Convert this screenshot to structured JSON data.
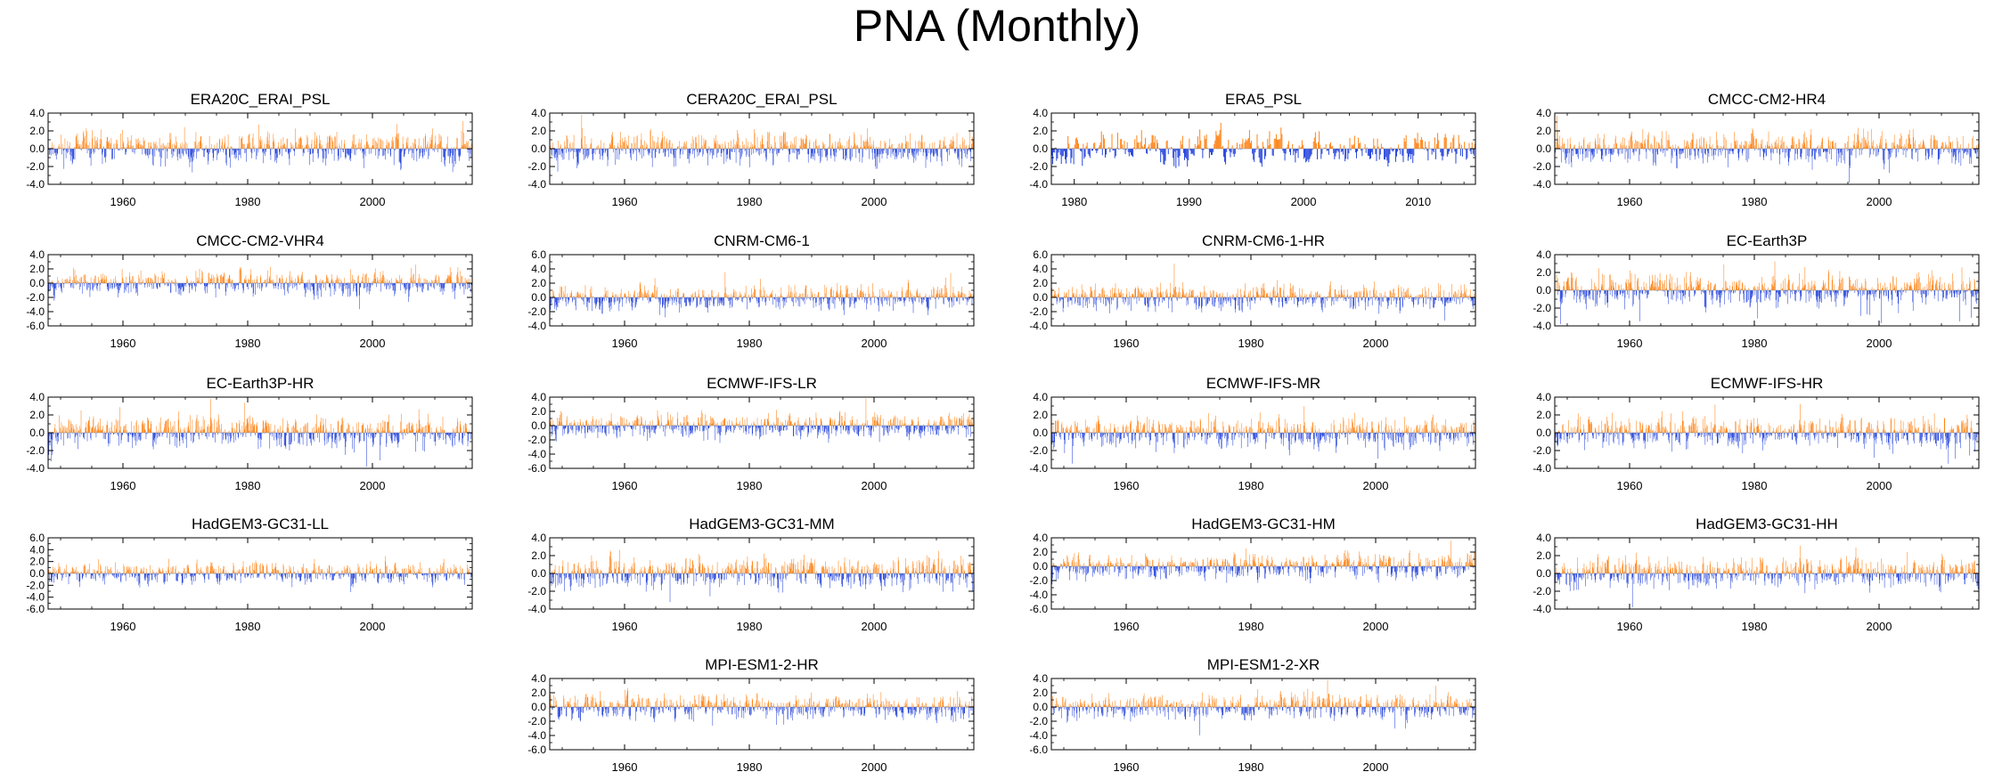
{
  "title": "PNA (Monthly)",
  "colors": {
    "positive": "#ff7f0e",
    "negative": "#1f3fdc",
    "axis": "#000000"
  },
  "chart_data": [
    {
      "type": "bar",
      "title": "ERA20C_ERAI_PSL",
      "x_range": [
        1948,
        2016
      ],
      "ylim": [
        -4,
        4
      ],
      "yticks": [
        -4,
        -2,
        0,
        2,
        4
      ],
      "xticks": [
        1960,
        1980,
        2000
      ],
      "seed": 11,
      "amp": 1.0
    },
    {
      "type": "bar",
      "title": "CERA20C_ERAI_PSL",
      "x_range": [
        1948,
        2016
      ],
      "ylim": [
        -4,
        4
      ],
      "yticks": [
        -4,
        -2,
        0,
        2,
        4
      ],
      "xticks": [
        1960,
        1980,
        2000
      ],
      "seed": 23,
      "amp": 1.0
    },
    {
      "type": "bar",
      "title": "ERA5_PSL",
      "x_range": [
        1978,
        2015
      ],
      "ylim": [
        -4,
        4
      ],
      "yticks": [
        -4,
        -2,
        0,
        2,
        4
      ],
      "xticks": [
        1980,
        1990,
        2000,
        2010
      ],
      "seed": 37,
      "amp": 1.05
    },
    {
      "type": "bar",
      "title": "CMCC-CM2-HR4",
      "x_range": [
        1948,
        2016
      ],
      "ylim": [
        -4,
        4
      ],
      "yticks": [
        -4,
        -2,
        0,
        2,
        4
      ],
      "xticks": [
        1960,
        1980,
        2000
      ],
      "seed": 41,
      "amp": 1.0
    },
    {
      "type": "bar",
      "title": "CMCC-CM2-VHR4",
      "x_range": [
        1948,
        2016
      ],
      "ylim": [
        -6,
        4
      ],
      "yticks": [
        -6,
        -4,
        -2,
        0,
        2,
        4
      ],
      "xticks": [
        1960,
        1980,
        2000
      ],
      "seed": 53,
      "amp": 1.0
    },
    {
      "type": "bar",
      "title": "CNRM-CM6-1",
      "x_range": [
        1948,
        2016
      ],
      "ylim": [
        -4,
        6
      ],
      "yticks": [
        -4,
        -2,
        0,
        2,
        4,
        6
      ],
      "xticks": [
        1960,
        1980,
        2000
      ],
      "seed": 67,
      "amp": 1.0
    },
    {
      "type": "bar",
      "title": "CNRM-CM6-1-HR",
      "x_range": [
        1948,
        2016
      ],
      "ylim": [
        -4,
        6
      ],
      "yticks": [
        -4,
        -2,
        0,
        2,
        4,
        6
      ],
      "xticks": [
        1960,
        1980,
        2000
      ],
      "seed": 71,
      "amp": 1.0
    },
    {
      "type": "bar",
      "title": "EC-Earth3P",
      "x_range": [
        1948,
        2016
      ],
      "ylim": [
        -4,
        4
      ],
      "yticks": [
        -4,
        -2,
        0,
        2,
        4
      ],
      "xticks": [
        1960,
        1980,
        2000
      ],
      "seed": 83,
      "amp": 1.05
    },
    {
      "type": "bar",
      "title": "EC-Earth3P-HR",
      "x_range": [
        1948,
        2016
      ],
      "ylim": [
        -4,
        4
      ],
      "yticks": [
        -4,
        -2,
        0,
        2,
        4
      ],
      "xticks": [
        1960,
        1980,
        2000
      ],
      "seed": 97,
      "amp": 1.05
    },
    {
      "type": "bar",
      "title": "ECMWF-IFS-LR",
      "x_range": [
        1948,
        2016
      ],
      "ylim": [
        -6,
        4
      ],
      "yticks": [
        -6,
        -4,
        -2,
        0,
        2,
        4
      ],
      "xticks": [
        1960,
        1980,
        2000
      ],
      "seed": 101,
      "amp": 1.0
    },
    {
      "type": "bar",
      "title": "ECMWF-IFS-MR",
      "x_range": [
        1948,
        2016
      ],
      "ylim": [
        -4,
        4
      ],
      "yticks": [
        -4,
        -2,
        0,
        2,
        4
      ],
      "xticks": [
        1960,
        1980,
        2000
      ],
      "seed": 113,
      "amp": 1.0
    },
    {
      "type": "bar",
      "title": "ECMWF-IFS-HR",
      "x_range": [
        1948,
        2016
      ],
      "ylim": [
        -4,
        4
      ],
      "yticks": [
        -4,
        -2,
        0,
        2,
        4
      ],
      "xticks": [
        1960,
        1980,
        2000
      ],
      "seed": 127,
      "amp": 1.0
    },
    {
      "type": "bar",
      "title": "HadGEM3-GC31-LL",
      "x_range": [
        1948,
        2016
      ],
      "ylim": [
        -6,
        6
      ],
      "yticks": [
        -6,
        -4,
        -2,
        0,
        2,
        4,
        6
      ],
      "xticks": [
        1960,
        1980,
        2000
      ],
      "seed": 131,
      "amp": 1.0
    },
    {
      "type": "bar",
      "title": "HadGEM3-GC31-MM",
      "x_range": [
        1948,
        2016
      ],
      "ylim": [
        -4,
        4
      ],
      "yticks": [
        -4,
        -2,
        0,
        2,
        4
      ],
      "xticks": [
        1960,
        1980,
        2000
      ],
      "seed": 149,
      "amp": 1.05
    },
    {
      "type": "bar",
      "title": "HadGEM3-GC31-HM",
      "x_range": [
        1948,
        2016
      ],
      "ylim": [
        -6,
        4
      ],
      "yticks": [
        -6,
        -4,
        -2,
        0,
        2,
        4
      ],
      "xticks": [
        1960,
        1980,
        2000
      ],
      "seed": 157,
      "amp": 1.0
    },
    {
      "type": "bar",
      "title": "HadGEM3-GC31-HH",
      "x_range": [
        1948,
        2016
      ],
      "ylim": [
        -4,
        4
      ],
      "yticks": [
        -4,
        -2,
        0,
        2,
        4
      ],
      "xticks": [
        1960,
        1980,
        2000
      ],
      "seed": 163,
      "amp": 1.0
    },
    {
      "type": "bar",
      "title": "MPI-ESM1-2-HR",
      "x_range": [
        1948,
        2016
      ],
      "ylim": [
        -6,
        4
      ],
      "yticks": [
        -6,
        -4,
        -2,
        0,
        2,
        4
      ],
      "xticks": [
        1960,
        1980,
        2000
      ],
      "seed": 173,
      "amp": 1.0
    },
    {
      "type": "bar",
      "title": "MPI-ESM1-2-XR",
      "x_range": [
        1948,
        2016
      ],
      "ylim": [
        -6,
        4
      ],
      "yticks": [
        -6,
        -4,
        -2,
        0,
        2,
        4
      ],
      "xticks": [
        1960,
        1980,
        2000
      ],
      "seed": 181,
      "amp": 1.0
    }
  ]
}
